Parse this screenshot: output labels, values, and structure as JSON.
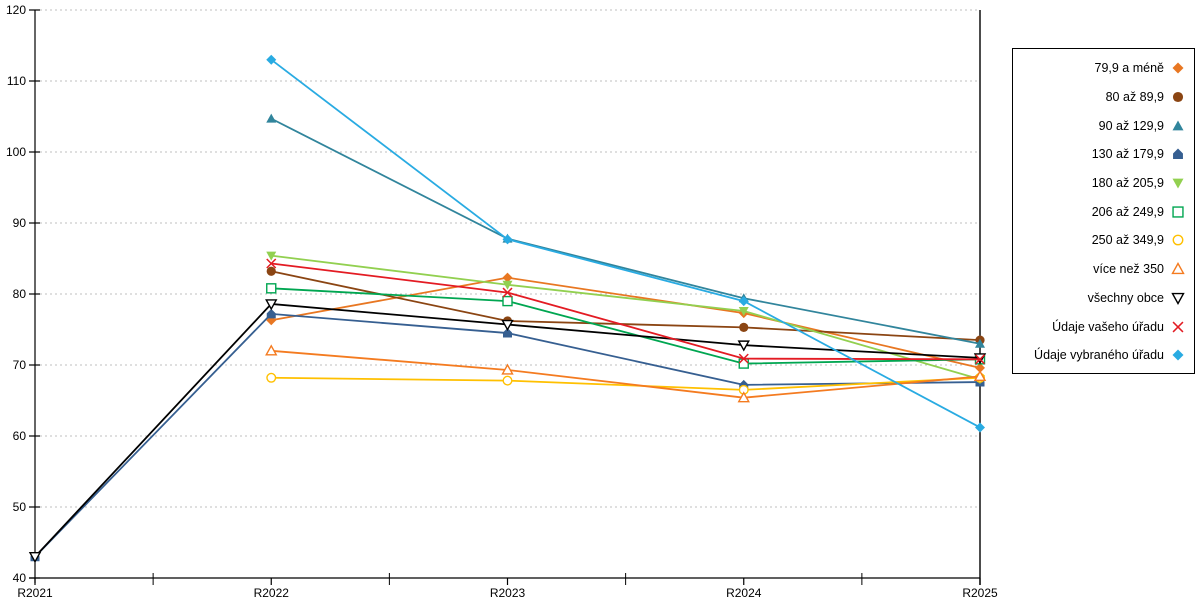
{
  "chart_data": {
    "type": "line",
    "title": "",
    "xlabel": "",
    "ylabel": "",
    "x_categories": [
      "R2021",
      "R2022",
      "R2023",
      "R2024",
      "R2025"
    ],
    "ylim": [
      40,
      120
    ],
    "yticks": [
      40,
      50,
      60,
      70,
      80,
      90,
      100,
      110,
      120
    ],
    "grid": "horizontal-dashed",
    "grid_color": "#BFBFBF",
    "legend_position": "right-box",
    "series": [
      {
        "name": "79,9 a méně",
        "color": "#E87722",
        "marker": "diamond-filled",
        "values": [
          null,
          76.3,
          82.3,
          77.3,
          69.6
        ]
      },
      {
        "name": "80 až 89,9",
        "color": "#8B4513",
        "marker": "circle-filled",
        "values": [
          null,
          83.2,
          76.2,
          75.3,
          73.5
        ]
      },
      {
        "name": "90 až 129,9",
        "color": "#31859C",
        "marker": "triangle-filled",
        "values": [
          null,
          104.7,
          87.8,
          79.4,
          73.0
        ]
      },
      {
        "name": "130 až 179,9",
        "color": "#365F91",
        "marker": "pentagon-filled",
        "values": [
          43.0,
          77.2,
          74.5,
          67.2,
          67.6
        ]
      },
      {
        "name": "180 až 205,9",
        "color": "#92D050",
        "marker": "triangle-down-filled",
        "values": [
          null,
          85.4,
          81.3,
          77.6,
          68.0
        ]
      },
      {
        "name": "206 až 249,9",
        "color": "#00A651",
        "marker": "square-open",
        "values": [
          null,
          80.8,
          79.0,
          70.2,
          70.8
        ]
      },
      {
        "name": "250 až 349,9",
        "color": "#FFC000",
        "marker": "circle-open",
        "values": [
          null,
          68.2,
          67.8,
          66.5,
          68.2
        ]
      },
      {
        "name": "více než 350",
        "color": "#F47B20",
        "marker": "triangle-open",
        "values": [
          null,
          72.0,
          69.3,
          65.4,
          68.4
        ]
      },
      {
        "name": "všechny obce",
        "color": "#000000",
        "marker": "triangle-down-open",
        "values": [
          43.0,
          78.6,
          75.7,
          72.8,
          71.0
        ]
      },
      {
        "name": "Údaje vašeho úřadu",
        "color": "#E31B23",
        "marker": "x",
        "values": [
          null,
          84.3,
          80.2,
          70.9,
          70.8
        ]
      },
      {
        "name": "Údaje vybraného úřadu",
        "color": "#29ABE2",
        "marker": "diamond-filled",
        "values": [
          null,
          113.0,
          87.7,
          79.0,
          61.2
        ]
      }
    ]
  }
}
